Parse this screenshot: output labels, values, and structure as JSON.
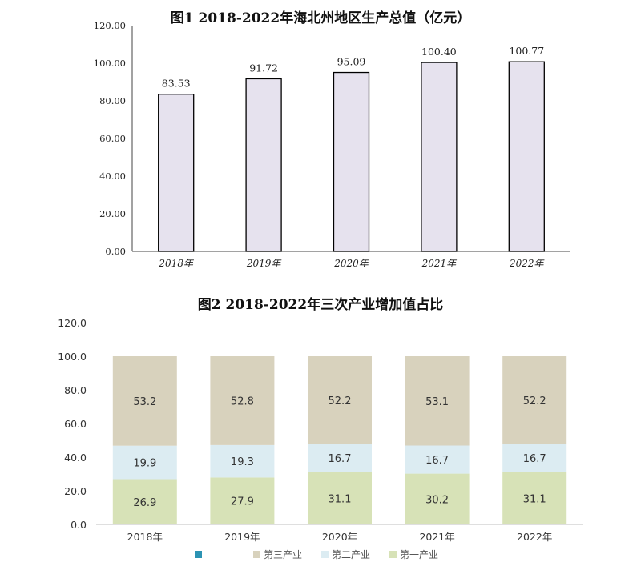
{
  "chart_data": [
    {
      "type": "bar",
      "title": "图1 2018-2022年海北州地区生产总值（亿元）",
      "categories": [
        "2018年",
        "2019年",
        "2020年",
        "2021年",
        "2022年"
      ],
      "values": [
        83.53,
        91.72,
        95.09,
        100.4,
        100.77
      ],
      "value_labels": [
        "83.53",
        "91.72",
        "95.09",
        "100.40",
        "100.77"
      ],
      "ylim": [
        0,
        120
      ],
      "yticks": [
        "0.00",
        "20.00",
        "40.00",
        "60.00",
        "80.00",
        "100.00",
        "120.00"
      ],
      "grid": false,
      "bar_fill": "#e6e2ee",
      "bar_stroke": "#000000"
    },
    {
      "type": "bar",
      "stacked": true,
      "title": "图2 2018-2022年三次产业增加值占比",
      "categories": [
        "2018年",
        "2019年",
        "2020年",
        "2021年",
        "2022年"
      ],
      "series": [
        {
          "name": "第一产业",
          "values": [
            26.9,
            27.9,
            31.1,
            30.2,
            31.1
          ],
          "labels": [
            "26.9",
            "27.9",
            "31.1",
            "30.2",
            "31.1"
          ],
          "color": "#d7e2b7"
        },
        {
          "name": "第二产业",
          "values": [
            19.9,
            19.3,
            16.7,
            16.7,
            16.7
          ],
          "labels": [
            "19.9",
            "19.3",
            "16.7",
            "16.7",
            "16.7"
          ],
          "color": "#dcecf2"
        },
        {
          "name": "第三产业",
          "values": [
            53.2,
            52.8,
            52.2,
            53.1,
            52.2
          ],
          "labels": [
            "53.2",
            "52.8",
            "52.2",
            "53.1",
            "52.2"
          ],
          "color": "#d8d2bd"
        }
      ],
      "legend_order": [
        "",
        "第三产业",
        "第二产业",
        "第一产业"
      ],
      "legend_colors": [
        "#2c93b3",
        "#d8d2bd",
        "#dcecf2",
        "#d7e2b7"
      ],
      "legend_position": "bottom",
      "ylim": [
        0,
        120
      ],
      "yticks": [
        "0.0",
        "20.0",
        "40.0",
        "60.0",
        "80.0",
        "100.0",
        "120.0"
      ],
      "grid": false
    }
  ]
}
